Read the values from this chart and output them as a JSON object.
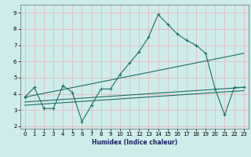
{
  "xlabel": "Humidex (Indice chaleur)",
  "xlim": [
    -0.5,
    23.5
  ],
  "ylim": [
    1.85,
    9.5
  ],
  "yticks": [
    2,
    3,
    4,
    5,
    6,
    7,
    8,
    9
  ],
  "xticks": [
    0,
    1,
    2,
    3,
    4,
    5,
    6,
    7,
    8,
    9,
    10,
    11,
    12,
    13,
    14,
    15,
    16,
    17,
    18,
    19,
    20,
    21,
    22,
    23
  ],
  "bg_color": "#ceecea",
  "grid_color": "#e8b8c0",
  "line_color": "#1a7068",
  "main_x": [
    0,
    1,
    2,
    3,
    4,
    5,
    6,
    7,
    8,
    9,
    10,
    11,
    12,
    13,
    14,
    15,
    16,
    17,
    18,
    19,
    20,
    21,
    22,
    23
  ],
  "main_y": [
    3.8,
    4.4,
    3.1,
    3.1,
    4.5,
    4.1,
    2.3,
    3.3,
    4.3,
    4.3,
    5.2,
    5.9,
    6.6,
    7.5,
    8.9,
    8.3,
    7.7,
    7.3,
    7.0,
    6.5,
    4.3,
    2.7,
    4.4,
    4.4
  ],
  "trend1_x": [
    0,
    23
  ],
  "trend1_y": [
    3.8,
    6.5
  ],
  "trend2_x": [
    0,
    23
  ],
  "trend2_y": [
    3.5,
    4.4
  ],
  "trend3_x": [
    0,
    23
  ],
  "trend3_y": [
    3.3,
    4.2
  ]
}
